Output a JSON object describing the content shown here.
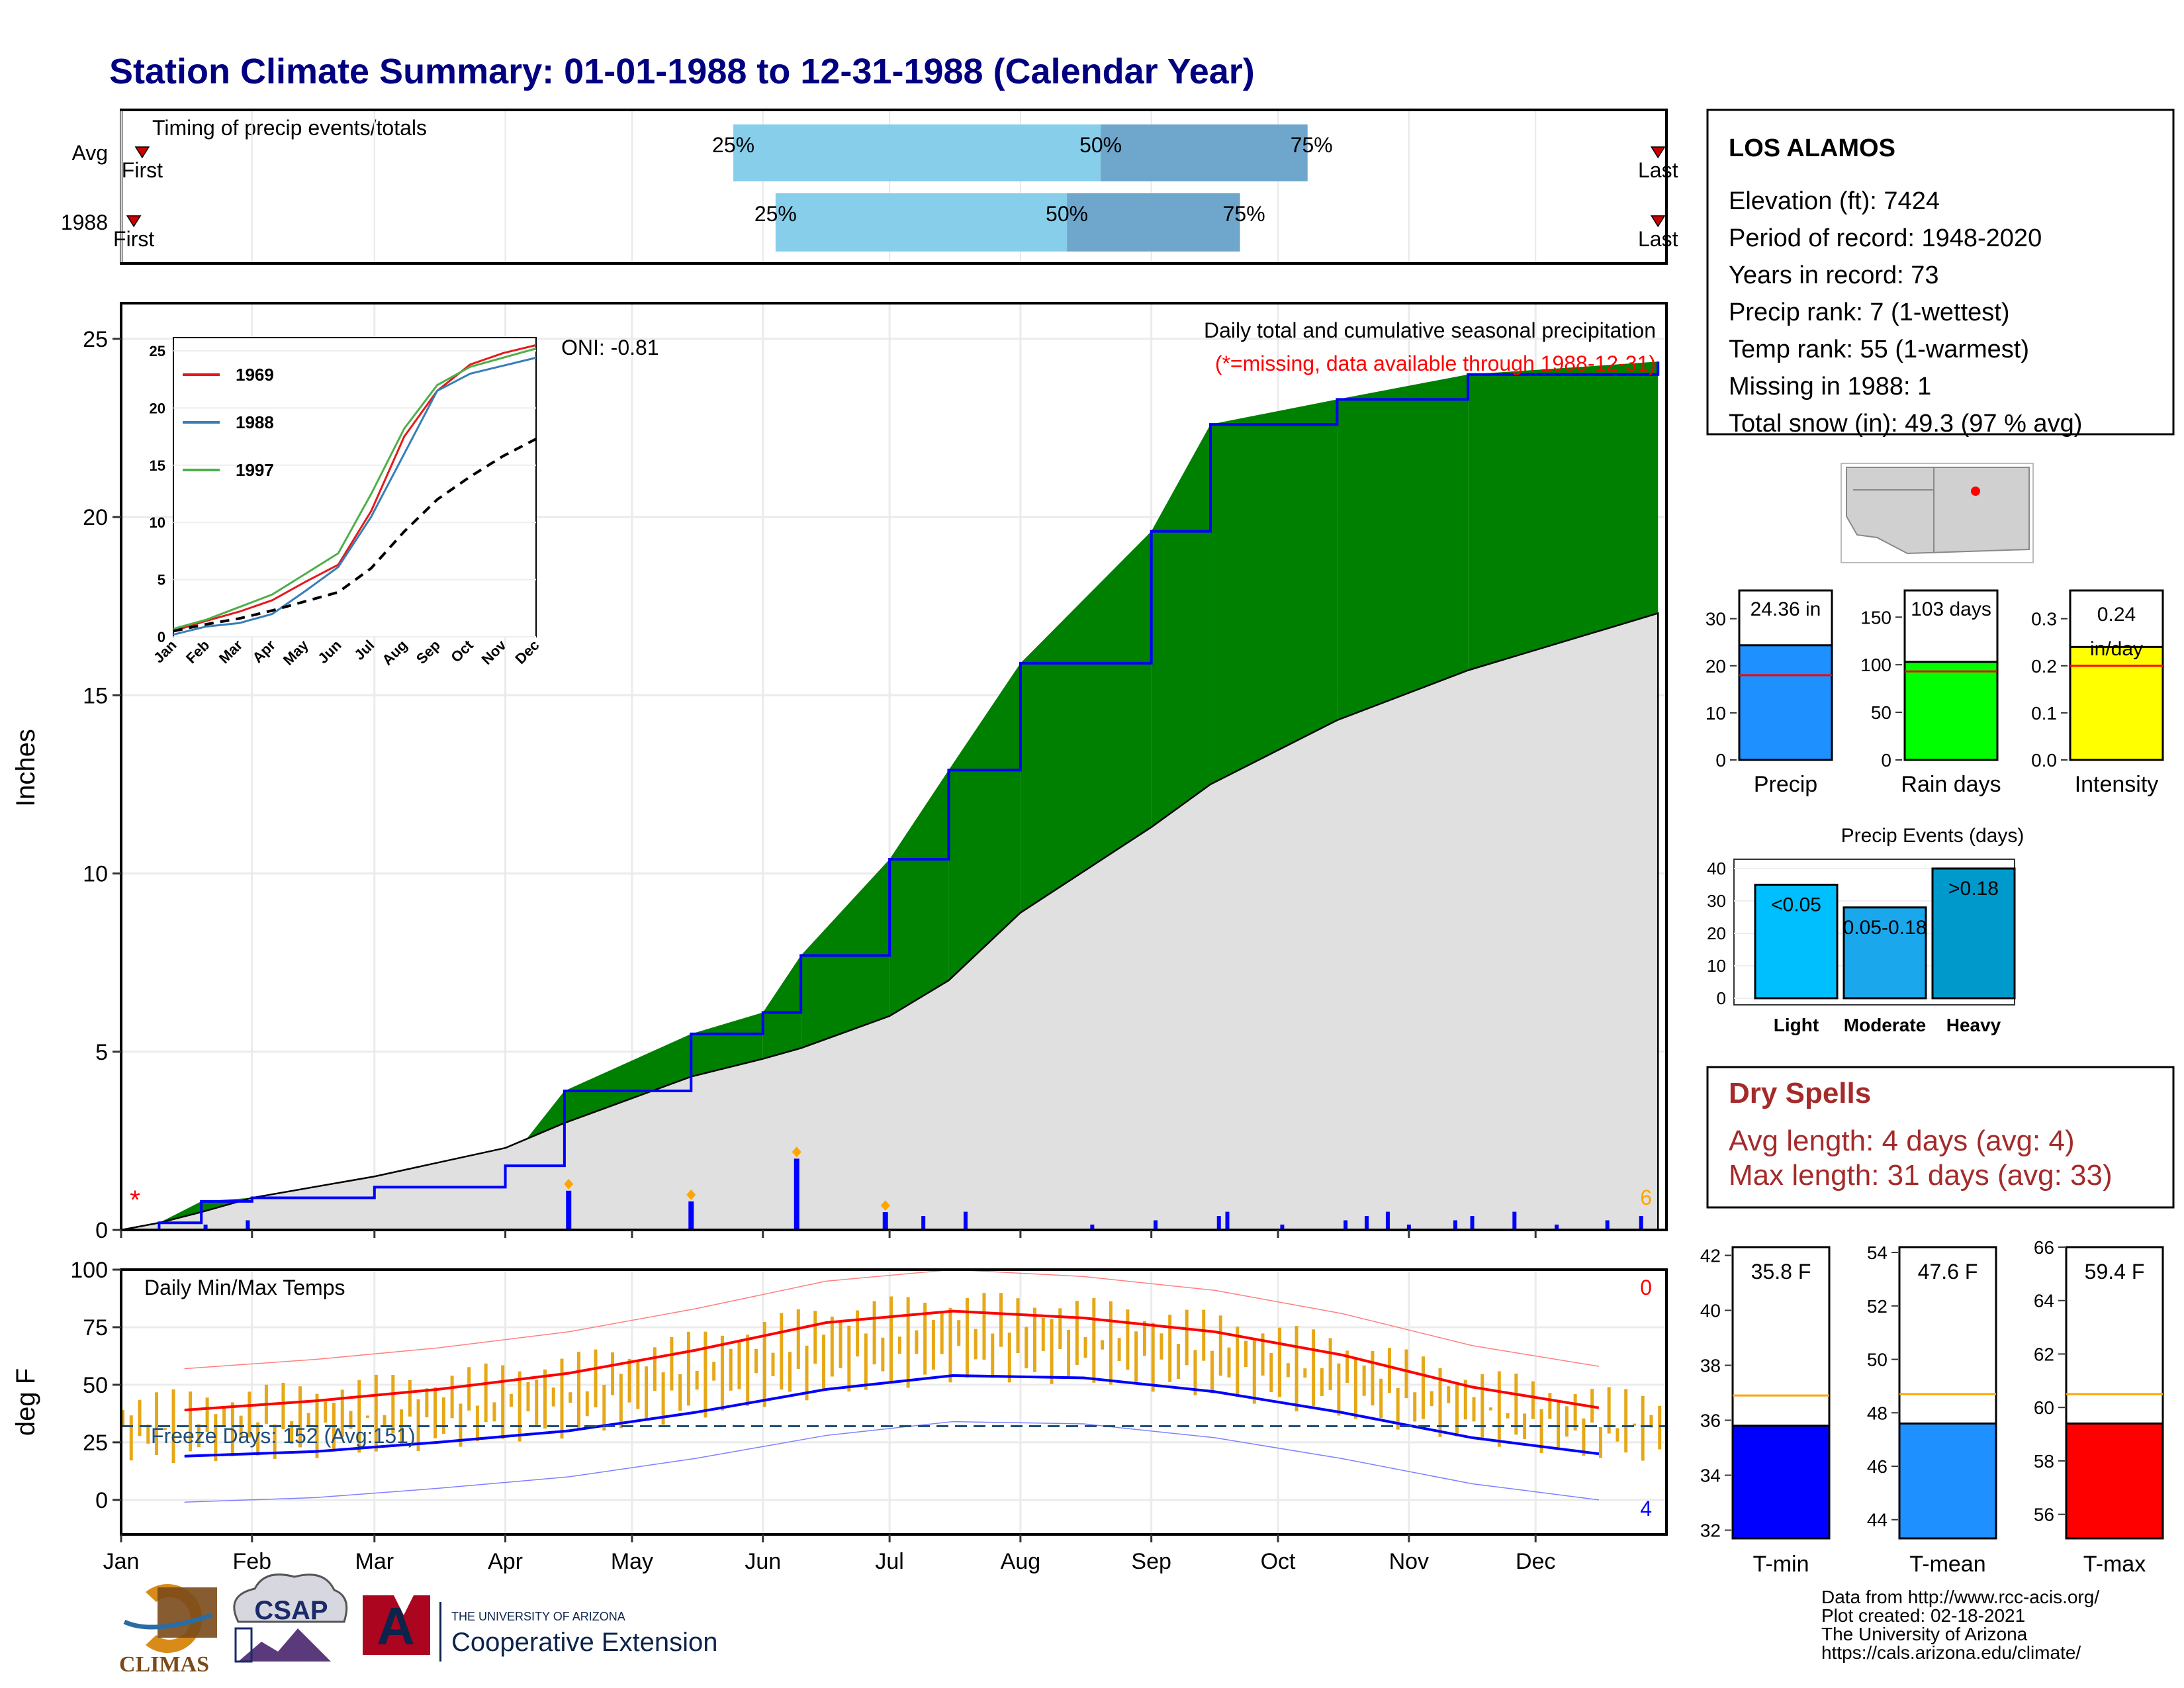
{
  "title": "Station Climate Summary: 01-01-1988 to 12-31-1988 (Calendar Year)",
  "months": [
    "Jan",
    "Feb",
    "Mar",
    "Apr",
    "May",
    "Jun",
    "Jul",
    "Aug",
    "Sep",
    "Oct",
    "Nov",
    "Dec"
  ],
  "timing": {
    "label": "Timing of precip events/totals",
    "rows": [
      "Avg",
      "1988"
    ],
    "first_label": "First",
    "last_label": "Last",
    "pct_labels": [
      "25%",
      "50%",
      "75%"
    ]
  },
  "precip_panel": {
    "ylabel": "Inches",
    "oni": "ONI: -0.81",
    "subtitle": "Daily total and cumulative seasonal precipitation",
    "note": "(*=missing, data available through 1988-12-31)",
    "missing_marker": "*",
    "count_right": "6",
    "inset_legend": [
      "1969",
      "1988",
      "1997"
    ]
  },
  "temp_panel": {
    "ylabel": "deg F",
    "label": "Daily Min/Max Temps",
    "freeze": "Freeze Days: 152 (Avg:151)",
    "count_top": "0",
    "count_bottom": "4"
  },
  "station": {
    "name": "LOS ALAMOS",
    "lines": [
      "Elevation (ft): 7424",
      "Period of record: 1948-2020",
      "Years in record: 73",
      "Precip rank: 7 (1-wettest)",
      "Temp rank: 55 (1-warmest)",
      "Missing in 1988: 1",
      "Total snow (in): 49.3 (97 % avg)"
    ]
  },
  "summary_bars": {
    "precip": {
      "label": "Precip",
      "text": "24.36 in"
    },
    "rain_days": {
      "label": "Rain days",
      "text": "103 days"
    },
    "intensity": {
      "label": "Intensity",
      "text_line1": "0.24",
      "text_line2": "in/day"
    }
  },
  "events": {
    "title": "Precip Events (days)",
    "categories": [
      "Light",
      "Moderate",
      "Heavy"
    ],
    "labels": [
      "<0.05",
      "0.05-0.18",
      ">0.18"
    ]
  },
  "dry_spells": {
    "title": "Dry Spells",
    "lines": [
      "Avg length: 4 days (avg: 4)",
      "Max length: 31 days (avg: 33)"
    ]
  },
  "temp_bars": {
    "tmin": {
      "label": "T-min",
      "text": "35.8 F"
    },
    "tmean": {
      "label": "T-mean",
      "text": "47.6 F"
    },
    "tmax": {
      "label": "T-max",
      "text": "59.4 F"
    }
  },
  "footer": {
    "lines": [
      "Data from http://www.rcc-acis.org/",
      "Plot created: 02-18-2021",
      "The University of Arizona",
      "https://cals.arizona.edu/climate/"
    ],
    "logo_climas": "CLIMAS",
    "logo_csap": "CSAP",
    "logo_ua_small": "THE UNIVERSITY OF ARIZONA",
    "logo_ua_big": "Cooperative Extension"
  },
  "colors": {
    "title": "#000080",
    "above_avg": "#008000",
    "below_avg": "#7f5200",
    "avg_fill": "#e0e0e0",
    "daily_bar": "#0000ff",
    "tmin": "#0000ff",
    "tmean": "#1e90ff",
    "tmax": "#ff0000",
    "temp_range": "#e6a817",
    "dry_spells": "#a52a2a"
  },
  "chart_data": [
    {
      "type": "bar",
      "name": "timing",
      "categories": [
        "Avg",
        "1988"
      ],
      "series": [
        {
          "values": [
            [
              145,
              232,
              281
            ],
            [
              155,
              224,
              265
            ]
          ]
        }
      ],
      "first_day": [
        5,
        3
      ],
      "last_day": [
        364,
        364
      ],
      "xlim": [
        "1988-01-01",
        "1988-12-31"
      ]
    },
    {
      "type": "area",
      "name": "cumulative_precip",
      "x": [
        "1988-01-01",
        "1988-01-10",
        "1988-01-20",
        "1988-02-01",
        "1988-03-01",
        "1988-04-01",
        "1988-04-15",
        "1988-05-15",
        "1988-06-01",
        "1988-06-10",
        "1988-07-01",
        "1988-07-15",
        "1988-08-01",
        "1988-09-01",
        "1988-09-15",
        "1988-10-15",
        "1988-11-15",
        "1988-12-30"
      ],
      "series": [
        {
          "values": [
            0,
            0.2,
            0.8,
            0.9,
            1.2,
            1.8,
            3.9,
            5.5,
            6.1,
            7.7,
            10.4,
            12.9,
            15.9,
            19.6,
            22.6,
            23.3,
            24.0,
            24.36
          ]
        },
        {
          "values": [
            0,
            0.2,
            0.5,
            0.9,
            1.5,
            2.3,
            3.0,
            4.3,
            4.8,
            5.1,
            6.0,
            7.0,
            8.9,
            11.3,
            12.5,
            14.3,
            15.7,
            17.3
          ]
        }
      ],
      "daily_peaks": [
        {
          "date": "1988-04-16",
          "value": 1.1
        },
        {
          "date": "1988-05-15",
          "value": 0.8
        },
        {
          "date": "1988-06-09",
          "value": 2.0
        },
        {
          "date": "1988-06-30",
          "value": 0.5
        }
      ],
      "ylim": [
        0,
        26
      ]
    },
    {
      "type": "line",
      "name": "inset_cumulative",
      "x": [
        "Jan",
        "Feb",
        "Mar",
        "Apr",
        "May",
        "Jun",
        "Jul",
        "Aug",
        "Sep",
        "Oct",
        "Nov",
        "Dec"
      ],
      "series": [
        {
          "name": "1969",
          "values": [
            0.5,
            1.4,
            2.2,
            3.2,
            4.8,
            6.3,
            11.0,
            17.5,
            21.5,
            23.8,
            24.8,
            25.5
          ]
        },
        {
          "name": "1988",
          "values": [
            0.2,
            0.9,
            1.2,
            2.0,
            4.0,
            6.1,
            10.5,
            16.0,
            21.5,
            23.0,
            23.7,
            24.4
          ]
        },
        {
          "name": "1997",
          "values": [
            0.7,
            1.5,
            2.6,
            3.7,
            5.5,
            7.3,
            12.5,
            18.2,
            22.0,
            23.6,
            24.4,
            25.2
          ]
        },
        {
          "values": [
            0.5,
            1.1,
            1.6,
            2.3,
            3.1,
            3.9,
            6.0,
            9.2,
            12.0,
            14.0,
            15.8,
            17.3
          ]
        }
      ],
      "ylim": [
        0,
        25
      ]
    },
    {
      "type": "line",
      "name": "daily_temps",
      "x": [
        "Jan",
        "Feb",
        "Mar",
        "Apr",
        "May",
        "Jun",
        "Jul",
        "Aug",
        "Sep",
        "Oct",
        "Nov",
        "Dec"
      ],
      "series": [
        {
          "values": [
            39,
            43,
            48,
            55,
            65,
            77,
            82,
            79,
            73,
            63,
            49,
            40
          ]
        },
        {
          "values": [
            19,
            21,
            25,
            30,
            38,
            48,
            54,
            53,
            47,
            38,
            27,
            20
          ]
        }
      ],
      "freeze_line": 32,
      "ylim": [
        -15,
        100
      ]
    },
    {
      "type": "bar",
      "name": "precip_summary",
      "categories": [
        "Precip",
        "Rain days",
        "Intensity"
      ],
      "values": [
        24.36,
        103,
        0.24
      ],
      "averages": [
        18,
        93,
        0.2
      ]
    },
    {
      "type": "bar",
      "name": "precip_events",
      "title": "Precip Events (days)",
      "categories": [
        "Light",
        "Moderate",
        "Heavy"
      ],
      "values": [
        35,
        28,
        40
      ],
      "ylim": [
        0,
        40
      ]
    },
    {
      "type": "bar",
      "name": "temp_summary",
      "categories": [
        "T-min",
        "T-mean",
        "T-max"
      ],
      "values": [
        35.8,
        47.6,
        59.4
      ],
      "averages": [
        36.9,
        48.7,
        60.5
      ]
    }
  ]
}
